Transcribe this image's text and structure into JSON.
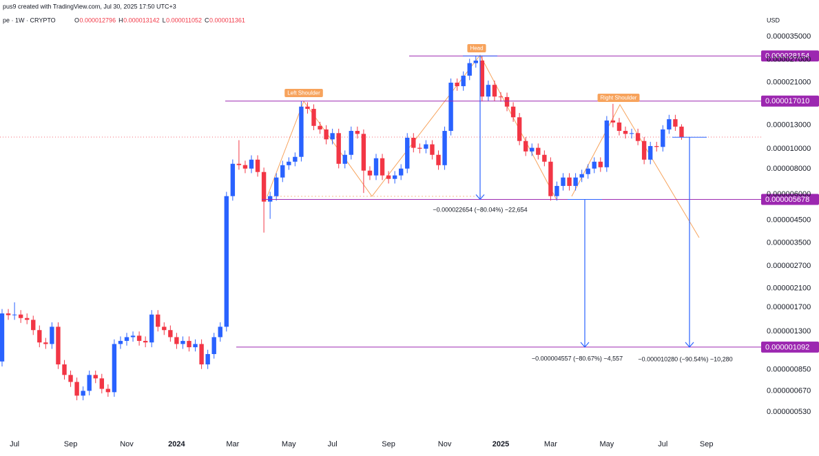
{
  "chart_data": {
    "type": "candlestick",
    "header": {
      "credit": "pus9 created with TradingView.com, Jul 30, 2025 17:50 UTC+3",
      "symbol": "pe · 1W · CRYPTO",
      "ohlc": [
        {
          "key": "O",
          "value": "0.000012796"
        },
        {
          "key": "H",
          "value": "0.000013142"
        },
        {
          "key": "L",
          "value": "0.000011052"
        },
        {
          "key": "C",
          "value": "0.000011361"
        }
      ]
    },
    "y_axis_label": "USD",
    "log_y": true,
    "up_color": "#2962ff",
    "down_color": "#f23645",
    "line_color": "#9c27b0",
    "ylim": [
      4.14e-07,
      5.26e-05
    ],
    "yticks": [
      {
        "value": 3.5e-05,
        "label": "0.000035000"
      },
      {
        "value": 2.7e-05,
        "label": "0.000027000"
      },
      {
        "value": 2.1e-05,
        "label": "0.000021000"
      },
      {
        "value": 1.3e-05,
        "label": "0.000013000"
      },
      {
        "value": 1e-05,
        "label": "0.000010000"
      },
      {
        "value": 8e-06,
        "label": "0.000008000"
      },
      {
        "value": 6e-06,
        "label": "0.000006000"
      },
      {
        "value": 4.5e-06,
        "label": "0.000004500"
      },
      {
        "value": 3.5e-06,
        "label": "0.000003500"
      },
      {
        "value": 2.7e-06,
        "label": "0.000002700"
      },
      {
        "value": 2.1e-06,
        "label": "0.000002100"
      },
      {
        "value": 1.7e-06,
        "label": "0.000001700"
      },
      {
        "value": 1.3e-06,
        "label": "0.000001300"
      },
      {
        "value": 8.5e-07,
        "label": "0.000000850"
      },
      {
        "value": 6.7e-07,
        "label": "0.000000670"
      },
      {
        "value": 5.3e-07,
        "label": "0.000000530"
      }
    ],
    "hlines": [
      {
        "value": 2.8154e-05,
        "label": "0.000028154"
      },
      {
        "value": 1.701e-05,
        "label": "0.000017010"
      },
      {
        "value": 5.678e-06,
        "label": "0.000005678"
      },
      {
        "value": 1.092e-06,
        "label": "0.000001092"
      }
    ],
    "pattern_labels": [
      "Left Shoulder",
      "Head",
      "Right Shoulder"
    ],
    "measurements": [
      "−0.000022654 (−80.04%) −22,654",
      "−0.000004557 (−80.67%) −4,557",
      "−0.000010280 (−90.54%) −10,280"
    ],
    "categories": [
      null,
      null,
      "Jul",
      null,
      null,
      null,
      null,
      null,
      null,
      null,
      null,
      "Sep",
      null,
      null,
      null,
      null,
      null,
      null,
      null,
      null,
      "Nov",
      null,
      null,
      null,
      null,
      null,
      null,
      null,
      "2024",
      null,
      null,
      null,
      null,
      null,
      null,
      null,
      null,
      "Mar",
      null,
      null,
      null,
      null,
      null,
      null,
      null,
      null,
      "May",
      null,
      null,
      null,
      null,
      null,
      null,
      "Jul",
      null,
      null,
      null,
      null,
      null,
      null,
      null,
      null,
      "Sep",
      null,
      null,
      null,
      null,
      null,
      null,
      null,
      null,
      "Nov",
      null,
      null,
      null,
      null,
      null,
      null,
      null,
      null,
      "2025",
      null,
      null,
      null,
      null,
      null,
      null,
      null,
      "Mar",
      null,
      null,
      null,
      null,
      null,
      null,
      null,
      null,
      "May",
      null,
      null,
      null,
      null,
      null,
      null,
      null,
      null,
      "Jul",
      null,
      null,
      null,
      null,
      null,
      null,
      "Sep"
    ],
    "open": [
      9.3e-07,
      1.59e-06,
      1.56e-06,
      1.57e-06,
      1.51e-06,
      1.48e-06,
      1.32e-06,
      1.15e-06,
      1.13e-06,
      1.37e-06,
      9e-07,
      8e-07,
      7.4e-07,
      6.35e-07,
      6.7e-07,
      8e-07,
      7.7e-07,
      6.85e-07,
      6.6e-07,
      1.13e-06,
      1.17e-06,
      1.22e-06,
      1.24e-06,
      1.17e-06,
      1.15e-06,
      1.57e-06,
      1.37e-06,
      1.32e-06,
      1.22e-06,
      1.13e-06,
      1.17e-06,
      1.09e-06,
      1.13e-06,
      9e-07,
      1.01e-06,
      1.22e-06,
      1.37e-06,
      5.89e-06,
      8.45e-06,
      8.33e-06,
      8.01e-06,
      8.85e-06,
      7.71e-06,
      5.54e-06,
      5.89e-06,
      7.25e-06,
      8.32e-06,
      8.65e-06,
      9.13e-06,
      1.6e-05,
      1.56e-05,
      1.29e-05,
      1.24e-05,
      1.11e-05,
      1.19e-05,
      8.45e-06,
      9.34e-06,
      1.22e-05,
      1.18e-05,
      7.83e-06,
      7.42e-06,
      8.99e-06,
      7.42e-06,
      7.14e-06,
      7.42e-06,
      8.01e-06,
      1.13e-05,
      1.01e-05,
      1e-05,
      1.05e-05,
      9.34e-06,
      8.32e-06,
      1.22e-05,
      2.09e-05,
      2.01e-05,
      2.26e-05,
      2.6e-05,
      2.675e-05,
      1.79e-05,
      2.04e-05,
      1.79e-05,
      1.78e-05,
      1.6e-05,
      1.42e-05,
      1.09e-05,
      9.7e-06,
      1.01e-05,
      9.34e-06,
      8.65e-06,
      5.89e-06,
      6.6e-06,
      7.25e-06,
      6.6e-06,
      7.25e-06,
      7.53e-06,
      8.01e-06,
      8.65e-06,
      8.13e-06,
      1.37e-05,
      1.34e-05,
      1.22e-05,
      1.18e-05,
      1.19e-05,
      1.09e-05,
      8.85e-06,
      1.03e-05,
      1.02e-05,
      1.24e-05,
      1.39e-05,
      1.2796e-05,
      null,
      null,
      null,
      null
    ],
    "high": [
      1.67e-06,
      1.67e-06,
      1.8e-06,
      1.65e-06,
      1.59e-06,
      1.55e-06,
      1.39e-06,
      1.21e-06,
      1.44e-06,
      1.44e-06,
      9.45e-07,
      8.4e-07,
      7.77e-07,
      7.04e-07,
      8.4e-07,
      8.4e-07,
      8.1e-07,
      7.2e-07,
      1.19e-06,
      1.23e-06,
      1.28e-06,
      1.3e-06,
      1.3e-06,
      1.23e-06,
      1.65e-06,
      1.65e-06,
      1.44e-06,
      1.39e-06,
      1.28e-06,
      1.23e-06,
      1.23e-06,
      1.19e-06,
      1.19e-06,
      1.06e-06,
      1.28e-06,
      1.44e-06,
      6.18e-06,
      8.87e-06,
      1.1e-05,
      8.75e-06,
      9.29e-06,
      9.29e-06,
      8.1e-06,
      6.18e-06,
      7.61e-06,
      8.74e-06,
      9.08e-06,
      9.59e-06,
      1.701e-05,
      1.68e-05,
      1.64e-05,
      1.35e-05,
      1.3e-05,
      1.25e-05,
      1.25e-05,
      9.81e-06,
      1.28e-05,
      1.28e-05,
      1.24e-05,
      8.22e-06,
      9.44e-06,
      9.44e-06,
      7.79e-06,
      7.79e-06,
      8.41e-06,
      1.19e-05,
      1.19e-05,
      1.06e-05,
      1.1e-05,
      1.1e-05,
      9.81e-06,
      1.28e-05,
      2.19e-05,
      2.19e-05,
      2.37e-05,
      2.73e-05,
      2.8154e-05,
      2.81e-05,
      2.14e-05,
      2.14e-05,
      1.88e-05,
      1.87e-05,
      1.68e-05,
      1.49e-05,
      1.14e-05,
      1.06e-05,
      1.06e-05,
      9.81e-06,
      9.08e-06,
      6.93e-06,
      7.61e-06,
      7.61e-06,
      7.61e-06,
      7.91e-06,
      8.41e-06,
      9.08e-06,
      9.08e-06,
      1.44e-05,
      1.65e-05,
      1.41e-05,
      1.28e-05,
      1.25e-05,
      1.25e-05,
      1.14e-05,
      1.08e-05,
      1.08e-05,
      1.3e-05,
      1.46e-05,
      1.46e-05,
      1.3142e-05,
      null,
      null,
      null,
      null
    ],
    "low": [
      8.8e-07,
      1.48e-06,
      1.48e-06,
      1.43e-06,
      1.41e-06,
      1.25e-06,
      1.09e-06,
      1.07e-06,
      1.07e-06,
      8.55e-07,
      7.6e-07,
      7e-07,
      6.03e-07,
      6.03e-07,
      6.37e-07,
      7.3e-07,
      6.51e-07,
      6.27e-07,
      6.27e-07,
      1.07e-06,
      1.11e-06,
      1.16e-06,
      1.11e-06,
      1.09e-06,
      1.09e-06,
      1.3e-06,
      1.25e-06,
      1.16e-06,
      1.07e-06,
      1.07e-06,
      1.04e-06,
      1.04e-06,
      8.55e-07,
      8.55e-07,
      9.6e-07,
      1.16e-06,
      1.3e-06,
      5.6e-06,
      7.91e-06,
      7.61e-06,
      7.61e-06,
      7.32e-06,
      3.92e-06,
      4.57e-06,
      5.6e-06,
      6.89e-06,
      7.9e-06,
      8.22e-06,
      8.67e-06,
      1.48e-05,
      1.23e-05,
      1.18e-05,
      1.05e-05,
      1.05e-05,
      8.03e-06,
      8.03e-06,
      8.87e-06,
      1.12e-05,
      6.1e-06,
      7.05e-06,
      7.05e-06,
      7.05e-06,
      6.78e-06,
      6.78e-06,
      7.05e-06,
      7.61e-06,
      9.6e-06,
      9.5e-06,
      9.5e-06,
      8.87e-06,
      7.9e-06,
      7.9e-06,
      1.16e-05,
      1.91e-05,
      1.91e-05,
      2.15e-05,
      2.47e-05,
      1.7e-05,
      1.7e-05,
      1.7e-05,
      1.69e-05,
      1.52e-05,
      1.35e-05,
      1.04e-05,
      9.22e-06,
      9.22e-06,
      8.87e-06,
      8.22e-06,
      5.6e-06,
      5.6e-06,
      6.27e-06,
      6.27e-06,
      6.27e-06,
      6.89e-06,
      7.15e-06,
      7.61e-06,
      7.72e-06,
      7.72e-06,
      1.27e-05,
      1.16e-05,
      1.12e-05,
      1.12e-05,
      1.04e-05,
      8.41e-06,
      8.41e-06,
      9.69e-06,
      9.69e-06,
      1.18e-05,
      1.22e-05,
      1.1052e-05,
      null,
      null,
      null,
      null
    ],
    "close": [
      1.59e-06,
      1.56e-06,
      1.57e-06,
      1.51e-06,
      1.48e-06,
      1.32e-06,
      1.15e-06,
      1.13e-06,
      1.37e-06,
      9e-07,
      8e-07,
      7.4e-07,
      6.35e-07,
      6.7e-07,
      8e-07,
      7.7e-07,
      6.85e-07,
      6.6e-07,
      1.13e-06,
      1.17e-06,
      1.22e-06,
      1.24e-06,
      1.17e-06,
      1.15e-06,
      1.57e-06,
      1.37e-06,
      1.32e-06,
      1.22e-06,
      1.13e-06,
      1.17e-06,
      1.09e-06,
      1.13e-06,
      9e-07,
      1.01e-06,
      1.22e-06,
      1.37e-06,
      5.89e-06,
      8.45e-06,
      8.33e-06,
      8.01e-06,
      8.85e-06,
      7.71e-06,
      5.54e-06,
      5.89e-06,
      7.25e-06,
      8.32e-06,
      8.65e-06,
      9.13e-06,
      1.6e-05,
      1.56e-05,
      1.29e-05,
      1.24e-05,
      1.11e-05,
      1.19e-05,
      8.45e-06,
      9.34e-06,
      1.22e-05,
      1.18e-05,
      7.83e-06,
      7.42e-06,
      8.99e-06,
      7.42e-06,
      7.14e-06,
      7.42e-06,
      8.01e-06,
      1.13e-05,
      1.01e-05,
      1e-05,
      1.05e-05,
      9.34e-06,
      8.32e-06,
      1.22e-05,
      2.09e-05,
      2.01e-05,
      2.26e-05,
      2.6e-05,
      2.675e-05,
      1.79e-05,
      2.04e-05,
      1.79e-05,
      1.78e-05,
      1.6e-05,
      1.42e-05,
      1.09e-05,
      9.7e-06,
      1.01e-05,
      9.34e-06,
      8.65e-06,
      5.89e-06,
      6.6e-06,
      7.25e-06,
      6.6e-06,
      7.25e-06,
      7.53e-06,
      8.01e-06,
      8.65e-06,
      8.13e-06,
      1.37e-05,
      1.34e-05,
      1.22e-05,
      1.18e-05,
      1.19e-05,
      1.09e-05,
      8.85e-06,
      1.03e-05,
      1.02e-05,
      1.24e-05,
      1.39e-05,
      1.2796e-05,
      1.1361e-05,
      null,
      null,
      null,
      null
    ]
  }
}
